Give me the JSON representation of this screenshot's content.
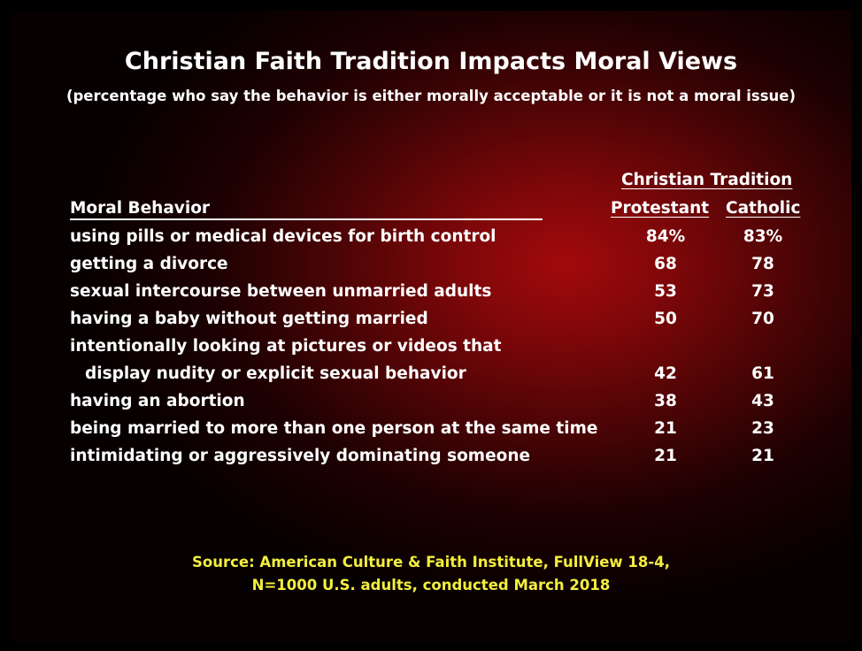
{
  "title": "Christian Faith Tradition Impacts Moral Views",
  "subtitle": "(percentage who say the behavior is either morally acceptable or it is not a moral issue)",
  "table": {
    "group_header": "Christian Tradition",
    "col_behavior": "Moral Behavior",
    "col_protestant": "Protestant",
    "col_catholic": "Catholic"
  },
  "chart_data": {
    "type": "table",
    "title": "Christian Faith Tradition Impacts Moral Views",
    "subtitle": "(percentage who say the behavior is either morally acceptable or it is not a moral issue)",
    "columns": [
      "Moral Behavior",
      "Protestant",
      "Catholic"
    ],
    "rows": [
      {
        "behavior": "using pills or medical devices for birth control",
        "protestant": "84%",
        "catholic": "83%"
      },
      {
        "behavior": "getting a divorce",
        "protestant": "68",
        "catholic": "78"
      },
      {
        "behavior": "sexual intercourse between unmarried adults",
        "protestant": "53",
        "catholic": "73"
      },
      {
        "behavior": "having a baby without getting married",
        "protestant": "50",
        "catholic": "70"
      },
      {
        "behavior": "intentionally looking at pictures or videos that",
        "behavior_cont": "display nudity or explicit sexual behavior",
        "protestant": "42",
        "catholic": "61"
      },
      {
        "behavior": "having an abortion",
        "protestant": "38",
        "catholic": "43"
      },
      {
        "behavior": "being married to more than one person at the same time",
        "protestant": "21",
        "catholic": "23"
      },
      {
        "behavior": "intimidating or aggressively dominating someone",
        "protestant": "21",
        "catholic": "21"
      }
    ]
  },
  "source_line1": "Source: American Culture & Faith Institute, FullView 18-4,",
  "source_line2": "N=1000 U.S. adults, conducted March 2018",
  "colors": {
    "background_center": "#a20a0d",
    "text": "#ffffff",
    "source_text": "#f3ee3e"
  }
}
